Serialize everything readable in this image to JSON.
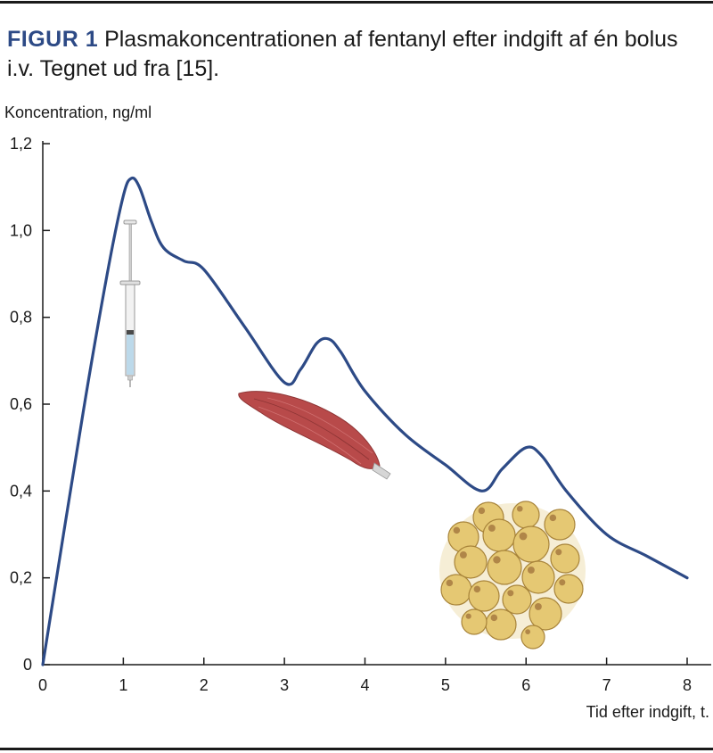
{
  "caption": {
    "label": "FIGUR 1",
    "text": "Plasmakoncentrationen af fentanyl efter indgift af én bolus i.v. Tegnet ud fra [15]."
  },
  "colors": {
    "line": "#2d4a86",
    "label": "#2d4a86",
    "axis": "#1a1a1a"
  },
  "icons": [
    "syringe-icon",
    "muscle-icon",
    "fat-cells-icon"
  ],
  "chart_data": {
    "type": "line",
    "title": "",
    "xlabel": "Tid efter indgift, t.",
    "ylabel": "Koncentration, ng/ml",
    "xlim": [
      0,
      8
    ],
    "ylim": [
      0,
      1.2
    ],
    "x_ticks": [
      "0",
      "1",
      "2",
      "3",
      "4",
      "5",
      "6",
      "7",
      "8"
    ],
    "y_ticks": [
      "0",
      "0,2",
      "0,4",
      "0,6",
      "0,8",
      "1,0",
      "1,2"
    ],
    "grid": false,
    "series": [
      {
        "x": [
          0,
          0.5,
          0.8,
          1.0,
          1.1,
          1.2,
          1.35,
          1.5,
          1.75,
          2.0,
          2.5,
          3.0,
          3.2,
          3.4,
          3.55,
          3.7,
          4.0,
          4.5,
          5.0,
          5.45,
          5.7,
          6.0,
          6.2,
          6.5,
          7.0,
          7.5,
          8.0
        ],
        "y": [
          0,
          0.58,
          0.9,
          1.08,
          1.12,
          1.1,
          1.02,
          0.96,
          0.93,
          0.91,
          0.78,
          0.65,
          0.68,
          0.74,
          0.75,
          0.72,
          0.63,
          0.53,
          0.46,
          0.4,
          0.45,
          0.5,
          0.48,
          0.4,
          0.3,
          0.25,
          0.2
        ]
      }
    ]
  }
}
